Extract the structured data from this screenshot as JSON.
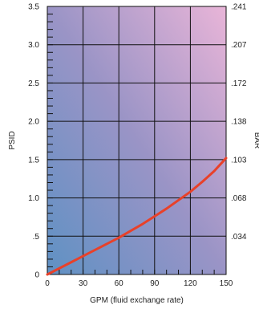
{
  "chart_data": {
    "type": "line",
    "title": "",
    "xlabel": "GPM (fluid exchange rate)",
    "ylabel": "PSID",
    "y2label": "BAR",
    "xlim": [
      0,
      150
    ],
    "ylim": [
      0,
      3.5
    ],
    "grid": true,
    "x_ticks": [
      0,
      30,
      60,
      90,
      120,
      150
    ],
    "x_tick_labels": [
      "0",
      "30",
      "60",
      "90",
      "120",
      "150"
    ],
    "y_ticks": [
      0,
      0.5,
      1.0,
      1.5,
      2.0,
      2.5,
      3.0,
      3.5
    ],
    "y_tick_labels": [
      "0",
      ".5",
      "1.0",
      "1.5",
      "2.0",
      "2.5",
      "3.0",
      "3.5"
    ],
    "y2_ticks": [
      0.5,
      1.0,
      1.5,
      2.0,
      2.5,
      3.0,
      3.5
    ],
    "y2_tick_labels": [
      ".034",
      ".068",
      ".103",
      ".138",
      ".172",
      ".207",
      ".241"
    ],
    "series": [
      {
        "color": "#e8412a",
        "x": [
          0,
          10,
          20,
          30,
          40,
          50,
          60,
          70,
          80,
          90,
          100,
          110,
          120,
          130,
          140,
          150
        ],
        "y": [
          0,
          0.08,
          0.16,
          0.24,
          0.32,
          0.4,
          0.48,
          0.57,
          0.66,
          0.76,
          0.86,
          0.97,
          1.08,
          1.21,
          1.35,
          1.52
        ]
      }
    ],
    "background_gradient": [
      "#5f91c4",
      "#9a94c6",
      "#e9b5d8"
    ]
  }
}
